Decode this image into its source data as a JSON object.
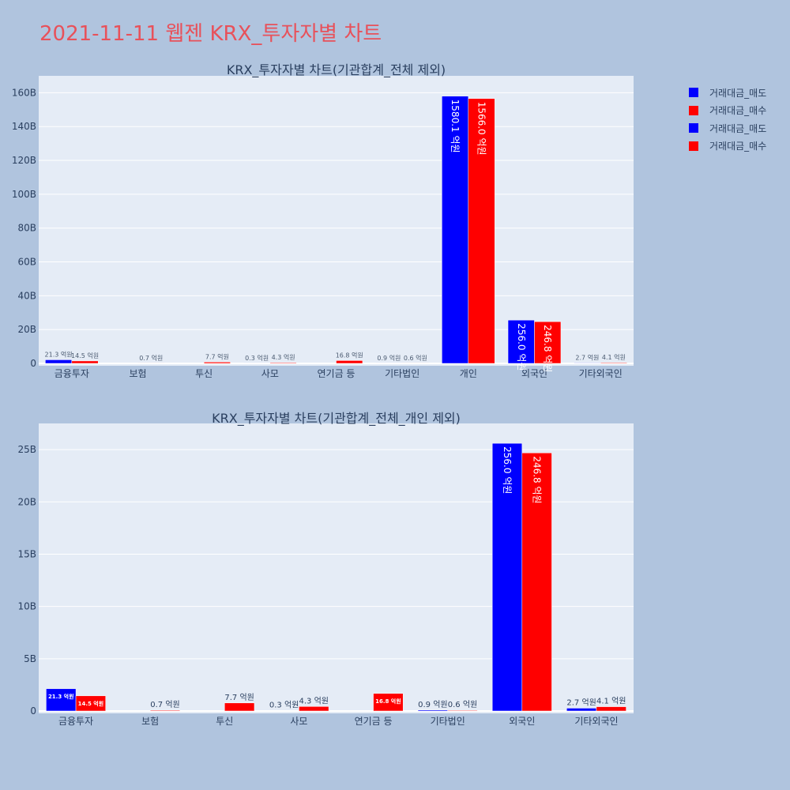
{
  "title": "2021-11-11 웹젠 KRX_투자자별 차트",
  "colors": {
    "page_bg": "#b0c4de",
    "plot_bg": "#e5ecf6",
    "sell": "#0000ff",
    "buy": "#ff0000",
    "title": "#e8515a",
    "text": "#2a3f5f"
  },
  "legend": [
    {
      "label": "거래대금_매도",
      "color": "#0000ff"
    },
    {
      "label": "거래대금_매수",
      "color": "#ff0000"
    },
    {
      "label": "거래대금_매도",
      "color": "#0000ff"
    },
    {
      "label": "거래대금_매수",
      "color": "#ff0000"
    }
  ],
  "chart_data": [
    {
      "type": "bar",
      "title": "KRX_투자자별 차트(기관합계_전체 제외)",
      "categories": [
        "금융투자",
        "보험",
        "투신",
        "사모",
        "연기금 등",
        "기타법인",
        "개인",
        "외국인",
        "기타외국인"
      ],
      "series": [
        {
          "name": "거래대금_매도",
          "color": "#0000ff",
          "values": [
            2.13,
            0,
            0,
            0.03,
            0,
            0.09,
            158.01,
            25.6,
            0.27
          ],
          "labels": [
            "21.3 억원",
            "",
            "",
            "0.3 억원",
            "",
            "0.9 억원",
            "1580.1 억원",
            "256.0 억원",
            "2.7 억원"
          ]
        },
        {
          "name": "거래대금_매수",
          "color": "#ff0000",
          "values": [
            1.45,
            0.07,
            0.77,
            0.43,
            1.68,
            0.06,
            156.6,
            24.68,
            0.41
          ],
          "labels": [
            "14.5 억원",
            "0.7 억원",
            "7.7 억원",
            "4.3 억원",
            "16.8 억원",
            "0.6 억원",
            "1566.0 억원",
            "246.8 억원",
            "4.1 억원"
          ]
        }
      ],
      "unit": "B",
      "ylim": [
        0,
        170
      ],
      "yticks": [
        0,
        20,
        40,
        60,
        80,
        100,
        120,
        140,
        160
      ],
      "ytick_labels": [
        "0",
        "20B",
        "40B",
        "60B",
        "80B",
        "100B",
        "120B",
        "140B",
        "160B"
      ],
      "grid": true,
      "legend_position": "top-right"
    },
    {
      "type": "bar",
      "title": "KRX_투자자별 차트(기관합계_전체_개인 제외)",
      "categories": [
        "금융투자",
        "보험",
        "투신",
        "사모",
        "연기금 등",
        "기타법인",
        "외국인",
        "기타외국인"
      ],
      "series": [
        {
          "name": "거래대금_매도",
          "color": "#0000ff",
          "values": [
            2.13,
            0,
            0,
            0.03,
            0,
            0.09,
            25.6,
            0.27
          ],
          "labels": [
            "21.3 억원",
            "",
            "",
            "0.3 억원",
            "",
            "0.9 억원",
            "256.0 억원",
            "2.7 억원"
          ]
        },
        {
          "name": "거래대금_매수",
          "color": "#ff0000",
          "values": [
            1.45,
            0.07,
            0.77,
            0.43,
            1.68,
            0.06,
            24.68,
            0.41
          ],
          "labels": [
            "14.5 억원",
            "0.7 억원",
            "7.7 억원",
            "4.3 억원",
            "16.8 억원",
            "0.6 억원",
            "246.8 억원",
            "4.1 억원"
          ]
        }
      ],
      "unit": "B",
      "ylim": [
        0,
        27.5
      ],
      "yticks": [
        0,
        5,
        10,
        15,
        20,
        25
      ],
      "ytick_labels": [
        "0",
        "5B",
        "10B",
        "15B",
        "20B",
        "25B"
      ],
      "grid": true
    }
  ]
}
